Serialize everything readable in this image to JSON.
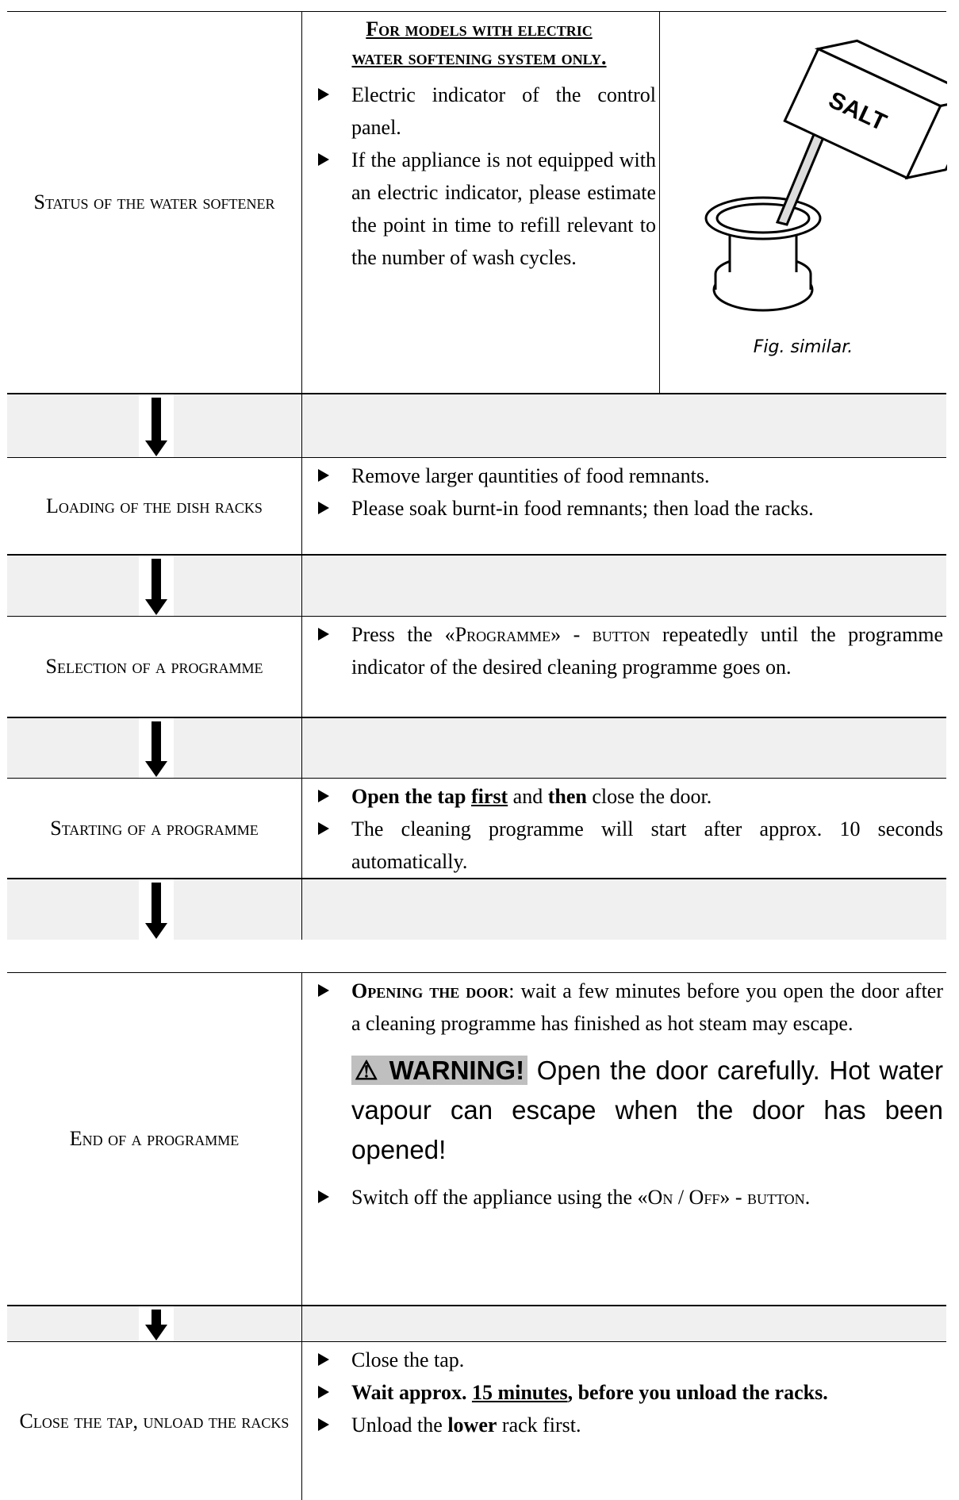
{
  "rows": [
    {
      "label": "Status of the water softener",
      "note": "For models with electric water softening system only.",
      "items": [
        [
          {
            "text": "Electric indicator of the control panel."
          }
        ],
        [
          {
            "text": "If the appliance is not equipped with an electric indicator, please estimate the point in time to refill relevant to the number of wash cycles."
          }
        ]
      ],
      "image_text": "SALT",
      "caption": "Fig. similar."
    },
    {
      "label": "Loading of the dish racks",
      "items": [
        [
          {
            "text": "Remove larger qauntities of food remnants."
          }
        ],
        [
          {
            "text": "Please soak burnt-in food remnants; then load the racks."
          }
        ]
      ]
    },
    {
      "label": "Selection of a programme",
      "items": [
        [
          {
            "text": "Press the «"
          },
          {
            "text": "Programme",
            "style": "smallcaps"
          },
          {
            "text": "» - "
          },
          {
            "text": "button",
            "style": "smallcaps"
          },
          {
            "text": " repeatedly until the programme indicator of the desired cleaning programme goes on."
          }
        ]
      ]
    },
    {
      "label": "Starting of a programme",
      "items": [
        [
          {
            "text": "Open the tap ",
            "style": "bold"
          },
          {
            "text": "first",
            "style": "bold-underline"
          },
          {
            "text": " and "
          },
          {
            "text": "then",
            "style": "bold"
          },
          {
            "text": " close the door."
          }
        ],
        [
          {
            "text": "The cleaning programme will start after approx. 10 seconds automatically."
          }
        ]
      ]
    },
    {
      "label": "End of a programme",
      "items": [
        [
          {
            "text": "Opening the door",
            "style": "bold-smallcaps"
          },
          {
            "text": ": wait a few minutes before you open the door after a cleaning programme has finished as hot steam may escape."
          }
        ]
      ],
      "warning_label": "⚠ WARNING!",
      "warning_text": "Open the door carefully. Hot water vapour can escape when the door has been opened!",
      "items_after": [
        [
          {
            "text": "Switch off the appliance using the «"
          },
          {
            "text": "On / Off",
            "style": "smallcaps"
          },
          {
            "text": "» - "
          },
          {
            "text": "button",
            "style": "smallcaps"
          },
          {
            "text": "."
          }
        ]
      ]
    },
    {
      "label": "Close the tap, unload the racks",
      "items": [
        [
          {
            "text": "Close the tap."
          }
        ],
        [
          {
            "text": "Wait approx. ",
            "style": "bold"
          },
          {
            "text": "15 minutes",
            "style": "bold-underline"
          },
          {
            "text": ", before you unload the racks.",
            "style": "bold"
          }
        ],
        [
          {
            "text": "Unload the "
          },
          {
            "text": "lower",
            "style": "bold"
          },
          {
            "text": " rack first."
          }
        ]
      ]
    }
  ]
}
